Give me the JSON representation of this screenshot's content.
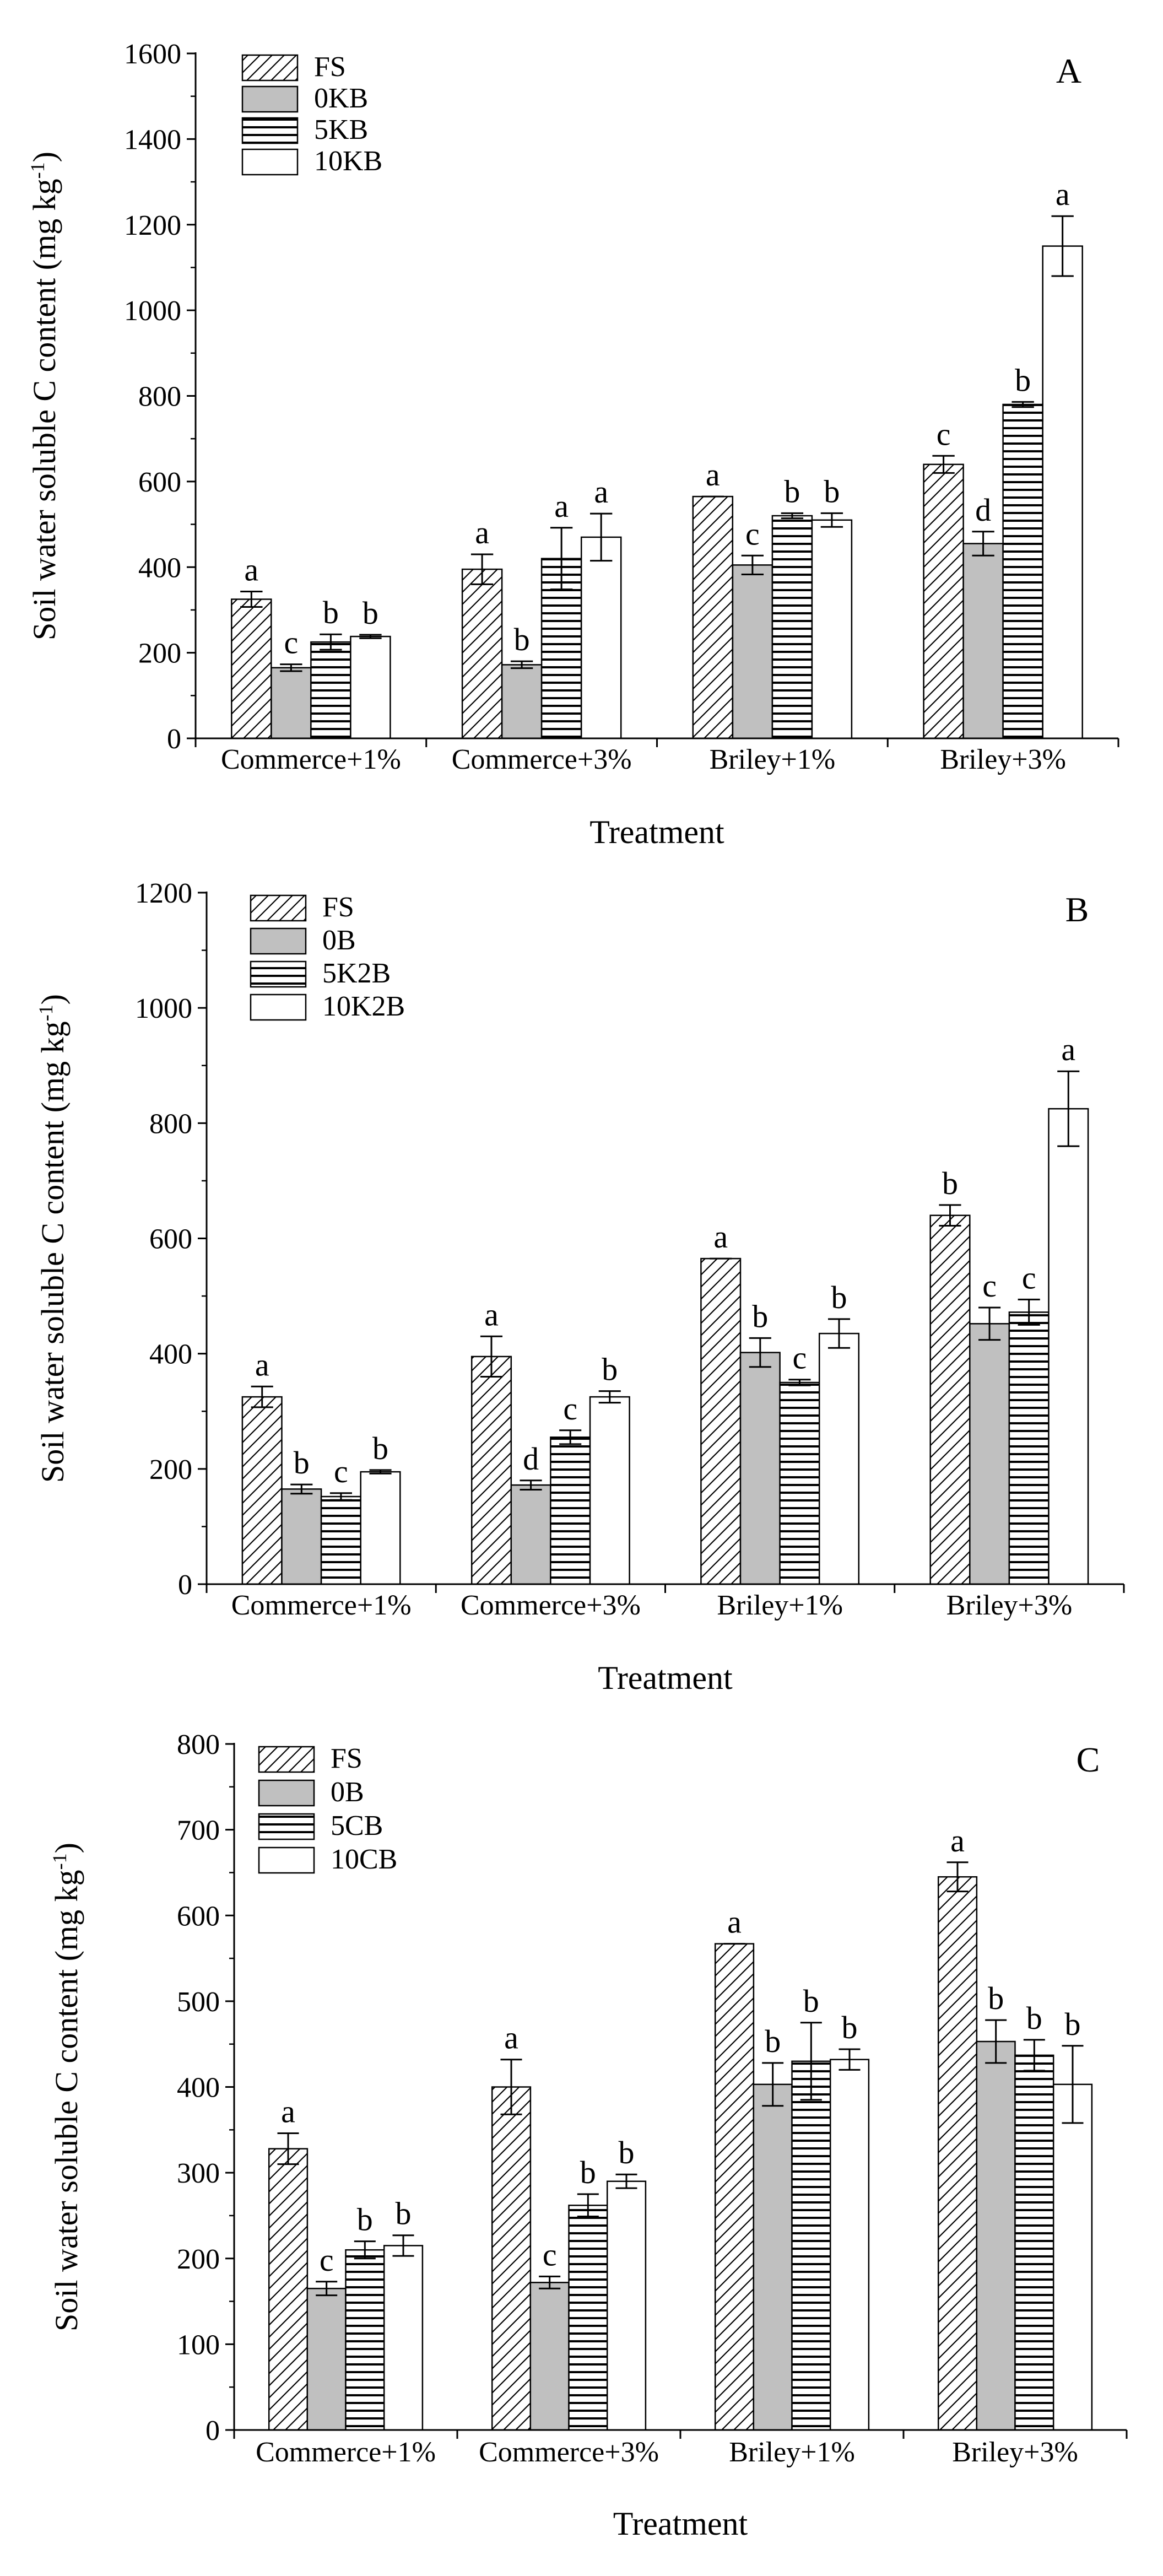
{
  "colors": {
    "fs": "#ffffff",
    "zero": "#c0c0c0",
    "five": "#ffffff",
    "ten": "#ffffff",
    "stroke": "#000000"
  },
  "chart_data": [
    {
      "type": "bar",
      "panel_label": "A",
      "xlabel": "Treatment",
      "ylabel": "Soil water soluble C content (mg kg",
      "ylabel_sup": "-1",
      "ylabel_close": ")",
      "ylim": [
        0,
        1600
      ],
      "yticks": [
        0,
        200,
        400,
        600,
        800,
        1000,
        1200,
        1400,
        1600
      ],
      "categories": [
        "Commerce+1%",
        "Commerce+3%",
        "Briley+1%",
        "Briley+3%"
      ],
      "legend_position": "top-left",
      "series": [
        {
          "name": "FS",
          "pattern": "diagonal",
          "values": [
            325,
            395,
            565,
            640
          ],
          "errors": [
            18,
            35,
            0,
            20
          ],
          "letters": [
            "a",
            "a",
            "a",
            "c"
          ]
        },
        {
          "name": "0KB",
          "pattern": "gray",
          "values": [
            165,
            172,
            405,
            455
          ],
          "errors": [
            8,
            8,
            22,
            28
          ],
          "letters": [
            "c",
            "b",
            "c",
            "d"
          ]
        },
        {
          "name": "5KB",
          "pattern": "horizontal",
          "values": [
            225,
            420,
            520,
            780
          ],
          "errors": [
            18,
            72,
            6,
            6
          ],
          "letters": [
            "b",
            "a",
            "b",
            "b"
          ]
        },
        {
          "name": "10KB",
          "pattern": "white",
          "values": [
            238,
            470,
            510,
            1150
          ],
          "errors": [
            4,
            55,
            16,
            70
          ],
          "letters": [
            "b",
            "a",
            "b",
            "a"
          ]
        }
      ]
    },
    {
      "type": "bar",
      "panel_label": "B",
      "xlabel": "Treatment",
      "ylabel": "Soil water soluble C content (mg kg",
      "ylabel_sup": "-1",
      "ylabel_close": ")",
      "ylim": [
        0,
        1200
      ],
      "yticks": [
        0,
        200,
        400,
        600,
        800,
        1000,
        1200
      ],
      "categories": [
        "Commerce+1%",
        "Commerce+3%",
        "Briley+1%",
        "Briley+3%"
      ],
      "legend_position": "top-left",
      "series": [
        {
          "name": "FS",
          "pattern": "diagonal",
          "values": [
            325,
            395,
            565,
            640
          ],
          "errors": [
            18,
            35,
            0,
            18
          ],
          "letters": [
            "a",
            "a",
            "a",
            "b"
          ]
        },
        {
          "name": "0B",
          "pattern": "gray",
          "values": [
            165,
            172,
            402,
            452
          ],
          "errors": [
            8,
            8,
            25,
            28
          ],
          "letters": [
            "b",
            "d",
            "b",
            "c"
          ]
        },
        {
          "name": "5K2B",
          "pattern": "horizontal",
          "values": [
            152,
            255,
            350,
            472
          ],
          "errors": [
            6,
            12,
            5,
            22
          ],
          "letters": [
            "c",
            "c",
            "c",
            "c"
          ]
        },
        {
          "name": "10K2B",
          "pattern": "white",
          "values": [
            195,
            325,
            435,
            825
          ],
          "errors": [
            3,
            10,
            25,
            65
          ],
          "letters": [
            "b",
            "b",
            "b",
            "a"
          ]
        }
      ]
    },
    {
      "type": "bar",
      "panel_label": "C",
      "xlabel": "Treatment",
      "ylabel": "Soil water soluble C content (mg kg",
      "ylabel_sup": "-1",
      "ylabel_close": ")",
      "ylim": [
        0,
        800
      ],
      "yticks": [
        0,
        100,
        200,
        300,
        400,
        500,
        600,
        700,
        800
      ],
      "categories": [
        "Commerce+1%",
        "Commerce+3%",
        "Briley+1%",
        "Briley+3%"
      ],
      "legend_position": "top-left",
      "series": [
        {
          "name": "FS",
          "pattern": "diagonal",
          "values": [
            328,
            400,
            567,
            645
          ],
          "errors": [
            18,
            32,
            0,
            17
          ],
          "letters": [
            "a",
            "a",
            "a",
            "a"
          ]
        },
        {
          "name": "0B",
          "pattern": "gray",
          "values": [
            165,
            172,
            403,
            453
          ],
          "errors": [
            8,
            7,
            25,
            25
          ],
          "letters": [
            "c",
            "c",
            "b",
            "b"
          ]
        },
        {
          "name": "5CB",
          "pattern": "horizontal",
          "values": [
            210,
            262,
            430,
            437
          ],
          "errors": [
            10,
            13,
            45,
            18
          ],
          "letters": [
            "b",
            "b",
            "b",
            "b"
          ]
        },
        {
          "name": "10CB",
          "pattern": "white",
          "values": [
            215,
            290,
            432,
            403
          ],
          "errors": [
            12,
            8,
            12,
            45
          ],
          "letters": [
            "b",
            "b",
            "b",
            "b"
          ]
        }
      ]
    }
  ]
}
